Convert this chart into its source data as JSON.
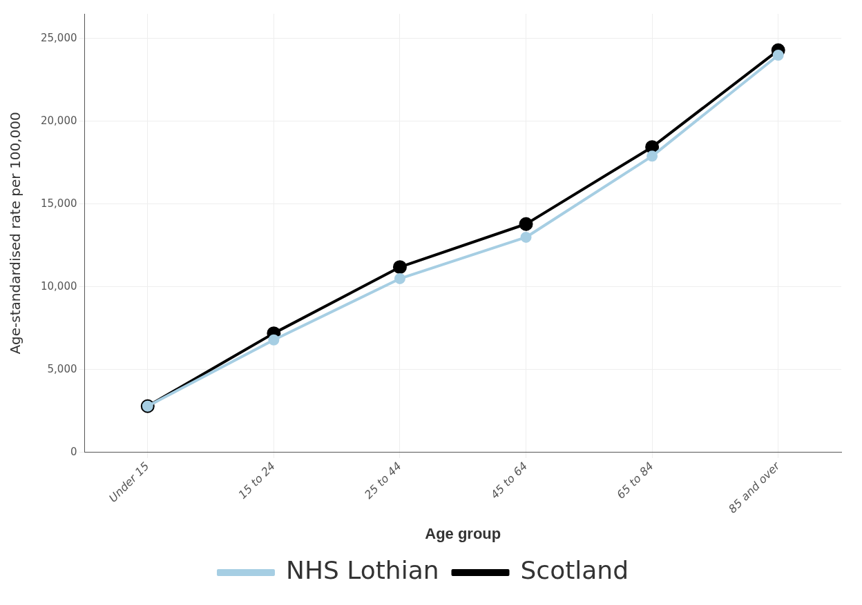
{
  "chart_data": {
    "type": "line",
    "xlabel": "Age group",
    "ylabel": "Age-standardised rate per 100,000",
    "categories": [
      "Under 15",
      "15 to 24",
      "25 to 44",
      "45 to 64",
      "65 to 84",
      "85 and over"
    ],
    "series": [
      {
        "name": "NHS Lothian",
        "color": "#a6cee3",
        "values": [
          2800,
          6800,
          10500,
          13000,
          17900,
          24000
        ]
      },
      {
        "name": "Scotland",
        "color": "#000000",
        "values": [
          2800,
          7200,
          11200,
          13800,
          18450,
          24300
        ]
      }
    ],
    "ylim": [
      0,
      26500
    ],
    "yticks": [
      0,
      {
        "value": 5000,
        "label": "5,000"
      },
      {
        "value": 10000,
        "label": "10,000"
      },
      {
        "value": 15000,
        "label": "15,000"
      },
      {
        "value": 20000,
        "label": "20,000"
      },
      {
        "value": 25000,
        "label": "25,000"
      }
    ],
    "grid": true,
    "legend": "bottom",
    "marker": "circle",
    "line_style": "solid"
  }
}
